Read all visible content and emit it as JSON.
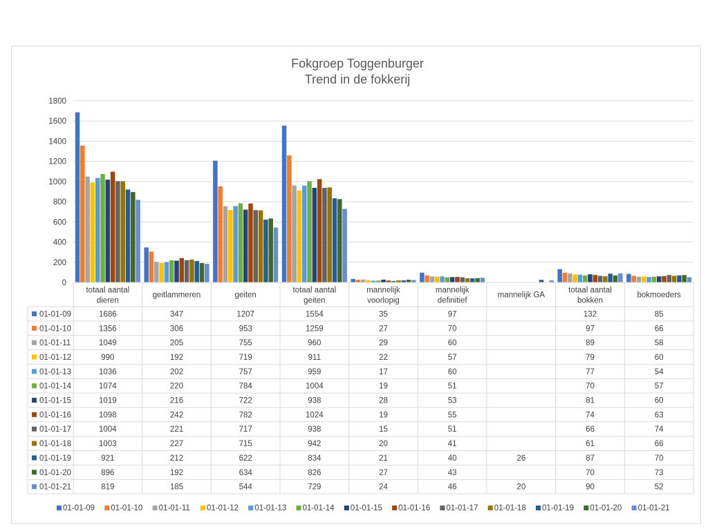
{
  "chart_data": {
    "type": "bar",
    "title": [
      "Fokgroep Toggenburger",
      "Trend in de fokkerij"
    ],
    "ylim": [
      0,
      1800
    ],
    "yticks": [
      "0",
      "200",
      "400",
      "600",
      "800",
      "1000",
      "1200",
      "1400",
      "1600",
      "1800"
    ],
    "grid": true,
    "legend": "bottom",
    "categories": [
      [
        "totaal aantal",
        "dieren"
      ],
      [
        "geitlammeren"
      ],
      [
        "geiten"
      ],
      [
        "totaal aantal",
        "geiten"
      ],
      [
        "mannelijk",
        "voorlopig"
      ],
      [
        "mannelijk",
        "definitief"
      ],
      [
        "mannelijk GA"
      ],
      [
        "totaal aantal",
        "bokken"
      ],
      [
        "bokmoeders"
      ]
    ],
    "series": [
      {
        "name": "01-01-09",
        "color": "#4472C4",
        "values": [
          1686,
          347,
          1207,
          1554,
          35,
          97,
          null,
          132,
          85
        ]
      },
      {
        "name": "01-01-10",
        "color": "#ED7D31",
        "values": [
          1356,
          306,
          953,
          1259,
          27,
          70,
          null,
          97,
          66
        ]
      },
      {
        "name": "01-01-11",
        "color": "#A5A5A5",
        "values": [
          1049,
          205,
          755,
          960,
          29,
          60,
          null,
          89,
          58
        ]
      },
      {
        "name": "01-01-12",
        "color": "#FFC000",
        "values": [
          990,
          192,
          719,
          911,
          22,
          57,
          null,
          79,
          60
        ]
      },
      {
        "name": "01-01-13",
        "color": "#5B9BD5",
        "values": [
          1036,
          202,
          757,
          959,
          17,
          60,
          null,
          77,
          54
        ]
      },
      {
        "name": "01-01-14",
        "color": "#70AD47",
        "values": [
          1074,
          220,
          784,
          1004,
          19,
          51,
          null,
          70,
          57
        ]
      },
      {
        "name": "01-01-15",
        "color": "#264478",
        "values": [
          1019,
          216,
          722,
          938,
          28,
          53,
          null,
          81,
          60
        ]
      },
      {
        "name": "01-01-16",
        "color": "#9E480E",
        "values": [
          1098,
          242,
          782,
          1024,
          19,
          55,
          null,
          74,
          63
        ]
      },
      {
        "name": "01-01-17",
        "color": "#636363",
        "values": [
          1004,
          221,
          717,
          938,
          15,
          51,
          null,
          66,
          74
        ]
      },
      {
        "name": "01-01-18",
        "color": "#997300",
        "values": [
          1003,
          227,
          715,
          942,
          20,
          41,
          null,
          61,
          66
        ]
      },
      {
        "name": "01-01-19",
        "color": "#255E91",
        "values": [
          921,
          212,
          622,
          834,
          21,
          40,
          26,
          87,
          70
        ]
      },
      {
        "name": "01-01-20",
        "color": "#43682B",
        "values": [
          896,
          192,
          634,
          826,
          27,
          43,
          null,
          70,
          73
        ]
      },
      {
        "name": "01-01-21",
        "color": "#698ED0",
        "values": [
          819,
          185,
          544,
          729,
          24,
          46,
          20,
          90,
          52
        ]
      }
    ]
  }
}
